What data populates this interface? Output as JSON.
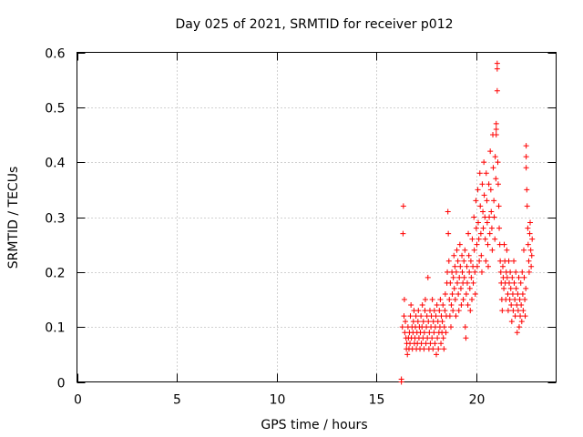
{
  "chart_data": {
    "type": "scatter",
    "title": "Day 025 of 2021, SRMTID for receiver p012",
    "xlabel": "GPS time / hours",
    "ylabel": "SRMTID / TECUs",
    "xlim": [
      0,
      24
    ],
    "ylim": [
      0,
      0.6
    ],
    "xticks": [
      0,
      5,
      10,
      15,
      20
    ],
    "yticks": [
      0,
      0.1,
      0.2,
      0.3,
      0.4,
      0.5,
      0.6
    ],
    "xtick_labels": [
      "0",
      "5",
      "10",
      "15",
      "20"
    ],
    "ytick_labels": [
      "0",
      "0.1",
      "0.2",
      "0.3",
      "0.4",
      "0.5",
      "0.6"
    ],
    "grid": true,
    "marker": "+",
    "series": [
      {
        "name": "SRMTID",
        "color": "#ff0000",
        "x": [
          16.25,
          16.25,
          16.3,
          16.33,
          16.35,
          16.38,
          16.4,
          16.42,
          16.45,
          16.48,
          16.5,
          16.52,
          16.55,
          16.58,
          16.6,
          16.63,
          16.65,
          16.68,
          16.7,
          16.73,
          16.75,
          16.78,
          16.8,
          16.83,
          16.85,
          16.88,
          16.9,
          16.93,
          16.95,
          16.98,
          17.0,
          17.03,
          17.05,
          17.08,
          17.1,
          17.13,
          17.15,
          17.18,
          17.2,
          17.23,
          17.25,
          17.28,
          17.3,
          17.33,
          17.35,
          17.38,
          17.4,
          17.43,
          17.45,
          17.48,
          17.5,
          17.53,
          17.55,
          17.58,
          17.6,
          17.63,
          17.65,
          17.68,
          17.7,
          17.73,
          17.75,
          17.78,
          17.8,
          17.83,
          17.85,
          17.88,
          17.9,
          17.93,
          17.95,
          17.98,
          18.0,
          18.03,
          18.05,
          18.08,
          18.1,
          18.13,
          18.15,
          18.18,
          18.2,
          18.23,
          18.25,
          18.28,
          18.3,
          18.33,
          18.35,
          18.38,
          18.4,
          18.43,
          18.45,
          18.48,
          18.5,
          18.53,
          18.55,
          18.58,
          18.6,
          18.63,
          18.65,
          18.68,
          18.7,
          18.73,
          18.75,
          18.78,
          18.8,
          18.83,
          18.85,
          18.88,
          18.9,
          18.93,
          18.95,
          18.98,
          19.0,
          19.03,
          19.05,
          19.08,
          19.1,
          19.13,
          19.15,
          19.18,
          19.2,
          19.23,
          19.25,
          19.28,
          19.3,
          19.33,
          19.35,
          19.38,
          19.4,
          19.43,
          19.45,
          19.48,
          19.5,
          19.53,
          19.55,
          19.58,
          19.6,
          19.63,
          19.65,
          19.68,
          19.7,
          19.73,
          19.75,
          19.78,
          19.8,
          19.83,
          19.85,
          19.88,
          19.9,
          19.93,
          19.95,
          19.98,
          20.0,
          20.03,
          20.05,
          20.08,
          20.1,
          20.13,
          20.15,
          20.18,
          20.2,
          20.23,
          20.25,
          20.28,
          20.3,
          20.33,
          20.35,
          20.38,
          20.4,
          20.43,
          20.45,
          20.48,
          20.5,
          20.53,
          20.55,
          20.58,
          20.6,
          20.63,
          20.65,
          20.68,
          20.7,
          20.73,
          20.75,
          20.78,
          20.8,
          20.83,
          20.85,
          20.88,
          20.9,
          20.93,
          20.95,
          20.98,
          21.0,
          21.0,
          21.0,
          21.05,
          21.05,
          21.05,
          21.08,
          21.1,
          21.13,
          21.15,
          21.18,
          21.2,
          21.23,
          21.25,
          21.28,
          21.3,
          21.33,
          21.35,
          21.38,
          21.4,
          21.43,
          21.45,
          21.48,
          21.5,
          21.53,
          21.55,
          21.58,
          21.6,
          21.63,
          21.65,
          21.68,
          21.7,
          21.73,
          21.75,
          21.78,
          21.8,
          21.83,
          21.85,
          21.88,
          21.9,
          21.93,
          21.95,
          21.98,
          22.0,
          22.03,
          22.05,
          22.08,
          22.1,
          22.13,
          22.15,
          22.18,
          22.2,
          22.23,
          22.25,
          22.28,
          22.3,
          22.33,
          22.35,
          22.38,
          22.4,
          22.43,
          22.45,
          22.48,
          22.5,
          22.5,
          22.5,
          22.53,
          22.55,
          22.58,
          22.6,
          22.63,
          22.65,
          22.68,
          22.7,
          22.73,
          22.75,
          22.78,
          22.8
        ],
        "y": [
          0.0,
          0.005,
          0.1,
          0.27,
          0.32,
          0.12,
          0.15,
          0.09,
          0.11,
          0.08,
          0.06,
          0.07,
          0.05,
          0.1,
          0.08,
          0.06,
          0.09,
          0.07,
          0.12,
          0.14,
          0.08,
          0.1,
          0.06,
          0.09,
          0.11,
          0.13,
          0.07,
          0.08,
          0.1,
          0.12,
          0.06,
          0.09,
          0.07,
          0.11,
          0.13,
          0.08,
          0.1,
          0.06,
          0.09,
          0.12,
          0.07,
          0.1,
          0.14,
          0.08,
          0.11,
          0.06,
          0.09,
          0.13,
          0.15,
          0.07,
          0.1,
          0.12,
          0.08,
          0.19,
          0.11,
          0.06,
          0.09,
          0.13,
          0.07,
          0.1,
          0.12,
          0.08,
          0.15,
          0.06,
          0.11,
          0.09,
          0.13,
          0.07,
          0.1,
          0.12,
          0.05,
          0.14,
          0.08,
          0.11,
          0.06,
          0.09,
          0.13,
          0.1,
          0.15,
          0.07,
          0.12,
          0.09,
          0.11,
          0.14,
          0.08,
          0.06,
          0.1,
          0.13,
          0.16,
          0.09,
          0.12,
          0.18,
          0.2,
          0.31,
          0.27,
          0.22,
          0.15,
          0.12,
          0.18,
          0.1,
          0.14,
          0.2,
          0.16,
          0.13,
          0.19,
          0.23,
          0.17,
          0.21,
          0.15,
          0.12,
          0.2,
          0.24,
          0.18,
          0.22,
          0.16,
          0.13,
          0.19,
          0.25,
          0.21,
          0.17,
          0.14,
          0.23,
          0.2,
          0.18,
          0.15,
          0.22,
          0.19,
          0.24,
          0.1,
          0.08,
          0.16,
          0.21,
          0.18,
          0.14,
          0.27,
          0.23,
          0.2,
          0.17,
          0.13,
          0.22,
          0.19,
          0.15,
          0.26,
          0.21,
          0.18,
          0.3,
          0.24,
          0.2,
          0.16,
          0.33,
          0.28,
          0.25,
          0.21,
          0.35,
          0.29,
          0.26,
          0.22,
          0.38,
          0.32,
          0.27,
          0.23,
          0.2,
          0.36,
          0.31,
          0.28,
          0.4,
          0.34,
          0.3,
          0.26,
          0.22,
          0.38,
          0.33,
          0.29,
          0.25,
          0.21,
          0.36,
          0.3,
          0.27,
          0.42,
          0.35,
          0.31,
          0.28,
          0.24,
          0.45,
          0.39,
          0.33,
          0.3,
          0.26,
          0.41,
          0.37,
          0.47,
          0.46,
          0.45,
          0.58,
          0.57,
          0.53,
          0.4,
          0.36,
          0.32,
          0.28,
          0.25,
          0.22,
          0.2,
          0.18,
          0.15,
          0.13,
          0.21,
          0.19,
          0.17,
          0.25,
          0.22,
          0.18,
          0.15,
          0.2,
          0.24,
          0.19,
          0.16,
          0.13,
          0.22,
          0.18,
          0.15,
          0.2,
          0.17,
          0.14,
          0.11,
          0.19,
          0.16,
          0.13,
          0.22,
          0.18,
          0.15,
          0.12,
          0.2,
          0.17,
          0.14,
          0.09,
          0.16,
          0.13,
          0.19,
          0.1,
          0.15,
          0.12,
          0.18,
          0.14,
          0.11,
          0.2,
          0.16,
          0.13,
          0.24,
          0.19,
          0.15,
          0.12,
          0.17,
          0.43,
          0.41,
          0.39,
          0.35,
          0.32,
          0.28,
          0.25,
          0.22,
          0.2,
          0.27,
          0.29,
          0.24,
          0.21,
          0.23,
          0.26
        ]
      }
    ]
  }
}
